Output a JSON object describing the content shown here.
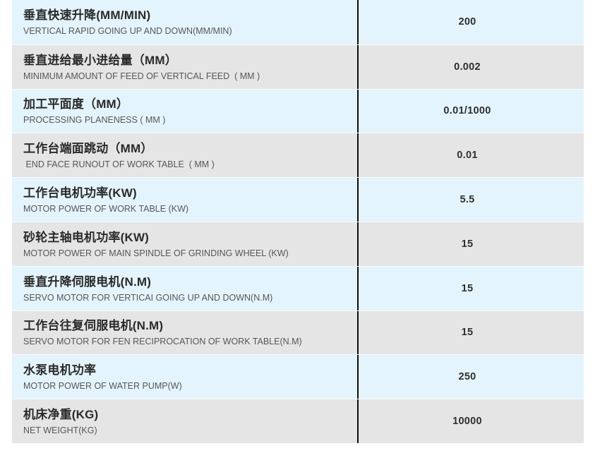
{
  "page": {
    "background_color": "#ffffff"
  },
  "table": {
    "divider_color": "#0d0d0d",
    "row_color_odd": "#e4f4fc",
    "row_color_even": "#e6e5e6",
    "label_color_zh": "#2a2a2a",
    "label_color_en": "#555658",
    "value_color": "#2f2f2f",
    "rows": [
      {
        "zh": "垂直快速升降(MM/MIN)",
        "en": "VERTICAL RAPID GOING UP AND DOWN(MM/MIN)",
        "value": "200"
      },
      {
        "zh": "垂直进给最小进给量（MM）",
        "en": "MINIMUM AMOUNT OF FEED OF VERTICAL FEED  ( MM )",
        "value": "0.002"
      },
      {
        "zh": "加工平面度（MM）",
        "en": "PROCESSING PLANENESS ( MM )",
        "value": "0.01/1000"
      },
      {
        "zh": "工作台端面跳动（MM）",
        "en": " END FACE RUNOUT OF WORK TABLE  ( MM )",
        "value": "0.01"
      },
      {
        "zh": "工作台电机功率(KW)",
        "en": "MOTOR POWER OF WORK TABLE (KW)",
        "value": "5.5"
      },
      {
        "zh": "砂轮主轴电机功率(KW)",
        "en": "MOTOR POWER OF MAIN SPINDLE OF GRINDING WHEEL (KW)",
        "value": "15"
      },
      {
        "zh": "垂直升降伺服电机(N.M)",
        "en": "SERVO MOTOR FOR VERTICAI GOING UP AND DOWN(N.M)",
        "value": "15"
      },
      {
        "zh": "工作台往复伺服电机(N.M)",
        "en": "SERVO MOTOR FOR FEN RECIPROCATION OF WORK TABLE(N.M)",
        "value": "15"
      },
      {
        "zh": "水泵电机功率",
        "en": "MOTOR POWER OF WATER PUMP(W)",
        "value": "250"
      },
      {
        "zh": "机床净重(KG)",
        "en": "NET WEIGHT(KG)",
        "value": "10000"
      }
    ]
  }
}
